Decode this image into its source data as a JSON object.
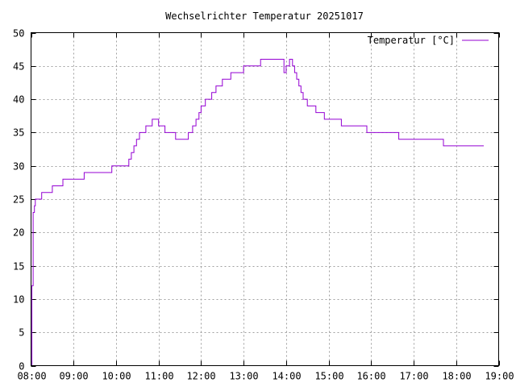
{
  "chart_data": {
    "type": "line",
    "title": "Wechselrichter Temperatur 20251017",
    "xlabel": "",
    "ylabel": "",
    "xlim": [
      8,
      19
    ],
    "ylim": [
      0,
      50
    ],
    "x_ticks": [
      "08:00",
      "09:00",
      "10:00",
      "11:00",
      "12:00",
      "13:00",
      "14:00",
      "15:00",
      "16:00",
      "17:00",
      "18:00",
      "19:00"
    ],
    "y_ticks": [
      "0",
      "5",
      "10",
      "15",
      "20",
      "25",
      "30",
      "35",
      "40",
      "45",
      "50"
    ],
    "grid": true,
    "legend_position": "top-right",
    "series": [
      {
        "name": "Temperatur [°C]",
        "color": "#9400d3",
        "points": [
          [
            8.0,
            0
          ],
          [
            8.02,
            12
          ],
          [
            8.05,
            23
          ],
          [
            8.08,
            24
          ],
          [
            8.1,
            25
          ],
          [
            8.25,
            26
          ],
          [
            8.5,
            27
          ],
          [
            8.75,
            28
          ],
          [
            9.25,
            29
          ],
          [
            9.9,
            30
          ],
          [
            10.3,
            31
          ],
          [
            10.36,
            32
          ],
          [
            10.42,
            33
          ],
          [
            10.48,
            34
          ],
          [
            10.55,
            35
          ],
          [
            10.7,
            36
          ],
          [
            10.85,
            37
          ],
          [
            11.0,
            36
          ],
          [
            11.15,
            35
          ],
          [
            11.4,
            34
          ],
          [
            11.7,
            35
          ],
          [
            11.8,
            36
          ],
          [
            11.88,
            37
          ],
          [
            11.95,
            38
          ],
          [
            12.0,
            39
          ],
          [
            12.1,
            40
          ],
          [
            12.25,
            41
          ],
          [
            12.35,
            42
          ],
          [
            12.5,
            43
          ],
          [
            12.7,
            44
          ],
          [
            13.0,
            45
          ],
          [
            13.4,
            46
          ],
          [
            13.85,
            46
          ],
          [
            13.95,
            44
          ],
          [
            14.0,
            45
          ],
          [
            14.08,
            46
          ],
          [
            14.15,
            45
          ],
          [
            14.2,
            44
          ],
          [
            14.25,
            43
          ],
          [
            14.3,
            42
          ],
          [
            14.35,
            41
          ],
          [
            14.4,
            40
          ],
          [
            14.5,
            39
          ],
          [
            14.7,
            38
          ],
          [
            14.9,
            37
          ],
          [
            15.3,
            36
          ],
          [
            15.9,
            35
          ],
          [
            16.65,
            34
          ],
          [
            17.7,
            33
          ],
          [
            18.65,
            33
          ]
        ]
      }
    ]
  }
}
